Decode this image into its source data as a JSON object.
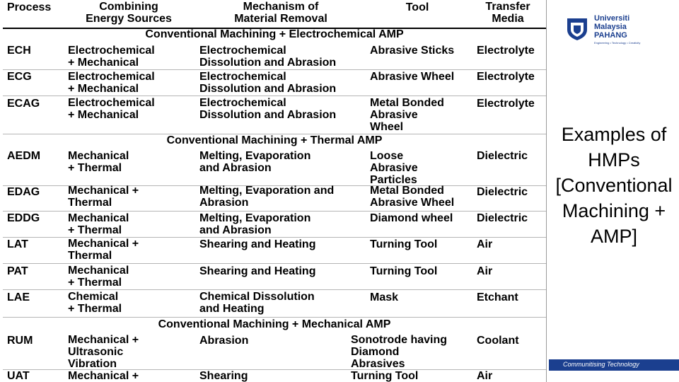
{
  "table": {
    "headers": {
      "process": "Process",
      "combining": "Combining\nEnergy Sources",
      "mechanism": "Mechanism of\nMaterial Removal",
      "tool": "Tool",
      "transfer": "Transfer\nMedia"
    },
    "sections": [
      "Conventional Machining + Electrochemical AMP",
      "Conventional Machining + Thermal AMP",
      "Conventional Machining + Mechanical AMP"
    ],
    "rows": [
      {
        "process": "ECH",
        "energy": "Electrochemical\n+  Mechanical",
        "mechanism": "Electrochemical\nDissolution  and Abrasion",
        "tool": "Abrasive Sticks",
        "media": "Electrolyte"
      },
      {
        "process": "ECG",
        "energy": "Electrochemical\n+  Mechanical",
        "mechanism": "Electrochemical\nDissolution  and Abrasion",
        "tool": "Abrasive Wheel",
        "media": "Electrolyte"
      },
      {
        "process": "ECAG",
        "energy": "Electrochemical\n+  Mechanical",
        "mechanism": "Electrochemical\nDissolution  and Abrasion",
        "tool": "Metal Bonded\nAbrasive\nWheel",
        "media": "Electrolyte"
      },
      {
        "process": "AEDM",
        "energy": "Mechanical\n+  Thermal",
        "mechanism": "Melting, Evaporation\nand  Abrasion",
        "tool": "Loose\nAbrasive\nParticles",
        "media": "Dielectric"
      },
      {
        "process": "EDAG",
        "energy": "Mechanical +\nThermal",
        "mechanism": "Melting, Evaporation  and\nAbrasion",
        "tool": "Metal Bonded\nAbrasive Wheel",
        "media": "Dielectric"
      },
      {
        "process": "EDDG",
        "energy": "Mechanical\n+  Thermal",
        "mechanism": "Melting, Evaporation\nand  Abrasion",
        "tool": "Diamond wheel",
        "media": "Dielectric"
      },
      {
        "process": "LAT",
        "energy": "Mechanical +\nThermal",
        "mechanism": "Shearing and Heating",
        "tool": "Turning Tool",
        "media": "Air"
      },
      {
        "process": "PAT",
        "energy": "Mechanical\n+  Thermal",
        "mechanism": "Shearing and Heating",
        "tool": "Turning Tool",
        "media": "Air"
      },
      {
        "process": "LAE",
        "energy": "Chemical\n+  Thermal",
        "mechanism": "Chemical Dissolution\nand  Heating",
        "tool": "Mask",
        "media": "Etchant"
      },
      {
        "process": "RUM",
        "energy": "Mechanical +\nUltrasonic\nVibration",
        "mechanism": "Abrasion",
        "tool": "Sonotrode having\nDiamond\nAbrasives",
        "media": "Coolant"
      },
      {
        "process": "UAT",
        "energy": "Mechanical +",
        "mechanism": "Shearing",
        "tool": "Turning Tool",
        "media": "Air"
      }
    ]
  },
  "logo": {
    "name": "Universiti\nMalaysia\nPAHANG",
    "tagline": "Engineering • Technology • Creativity"
  },
  "side_title": "Examples of\nHMPs\n[Conventional\nMachining +\nAMP]",
  "footer": "Communitising Technology",
  "colors": {
    "brand": "#1b3f8f",
    "rule": "#000000"
  }
}
